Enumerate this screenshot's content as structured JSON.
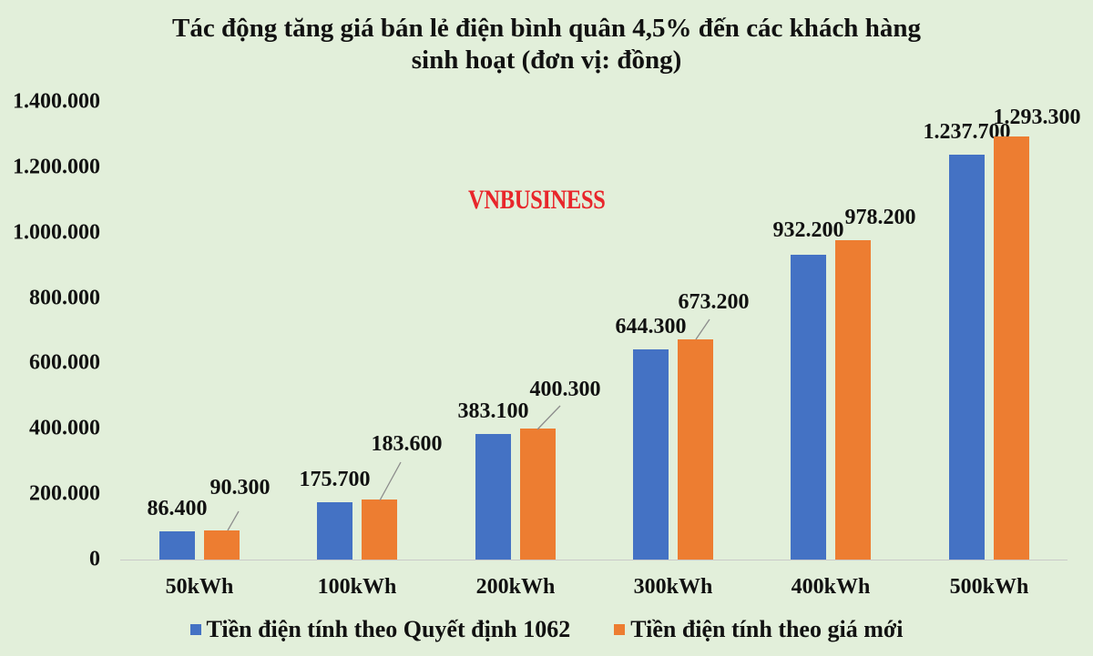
{
  "title_line1": "Tác động tăng giá bán lẻ điện bình quân 4,5% đến các khách hàng",
  "title_line2": "sinh hoạt (đơn vị: đồng)",
  "watermark": "VNBUSINESS",
  "colors": {
    "series_0": "#4472c4",
    "series_1": "#ed7d31",
    "background": "#e2efda",
    "watermark": "#e8262b"
  },
  "y_ticks": [
    "1.400.000",
    "1.200.000",
    "1.000.000",
    "800.000",
    "600.000",
    "400.000",
    "200.000",
    "0"
  ],
  "categories": [
    "50kWh",
    "100kWh",
    "200kWh",
    "300kWh",
    "400kWh",
    "500kWh"
  ],
  "labels": {
    "s0": [
      "86.400",
      "175.700",
      "383.100",
      "644.300",
      "932.200",
      "1.237.700"
    ],
    "s1": [
      "90.300",
      "183.600",
      "400.300",
      "673.200",
      "978.200",
      "1.293.300"
    ]
  },
  "legend": {
    "s0": "Tiền điện tính theo Quyết định 1062",
    "s1": "Tiền điện tính theo giá mới"
  },
  "chart_data": {
    "type": "bar",
    "title": "Tác động tăng giá bán lẻ điện bình quân 4,5% đến các khách hàng sinh hoạt (đơn vị: đồng)",
    "xlabel": "",
    "ylabel": "",
    "categories": [
      "50kWh",
      "100kWh",
      "200kWh",
      "300kWh",
      "400kWh",
      "500kWh"
    ],
    "series": [
      {
        "name": "Tiền điện tính theo Quyết định 1062",
        "color": "#4472c4",
        "values": [
          86400,
          175700,
          383100,
          644300,
          932200,
          1237700
        ]
      },
      {
        "name": "Tiền điện tính theo giá mới",
        "color": "#ed7d31",
        "values": [
          90300,
          183600,
          400300,
          673200,
          978200,
          1293300
        ]
      }
    ],
    "ylim": [
      0,
      1400000
    ],
    "y_ticks": [
      0,
      200000,
      400000,
      600000,
      800000,
      1000000,
      1200000,
      1400000
    ],
    "grid": false,
    "legend_position": "bottom",
    "data_labels": true,
    "annotations": [
      "VNBUSINESS"
    ]
  }
}
